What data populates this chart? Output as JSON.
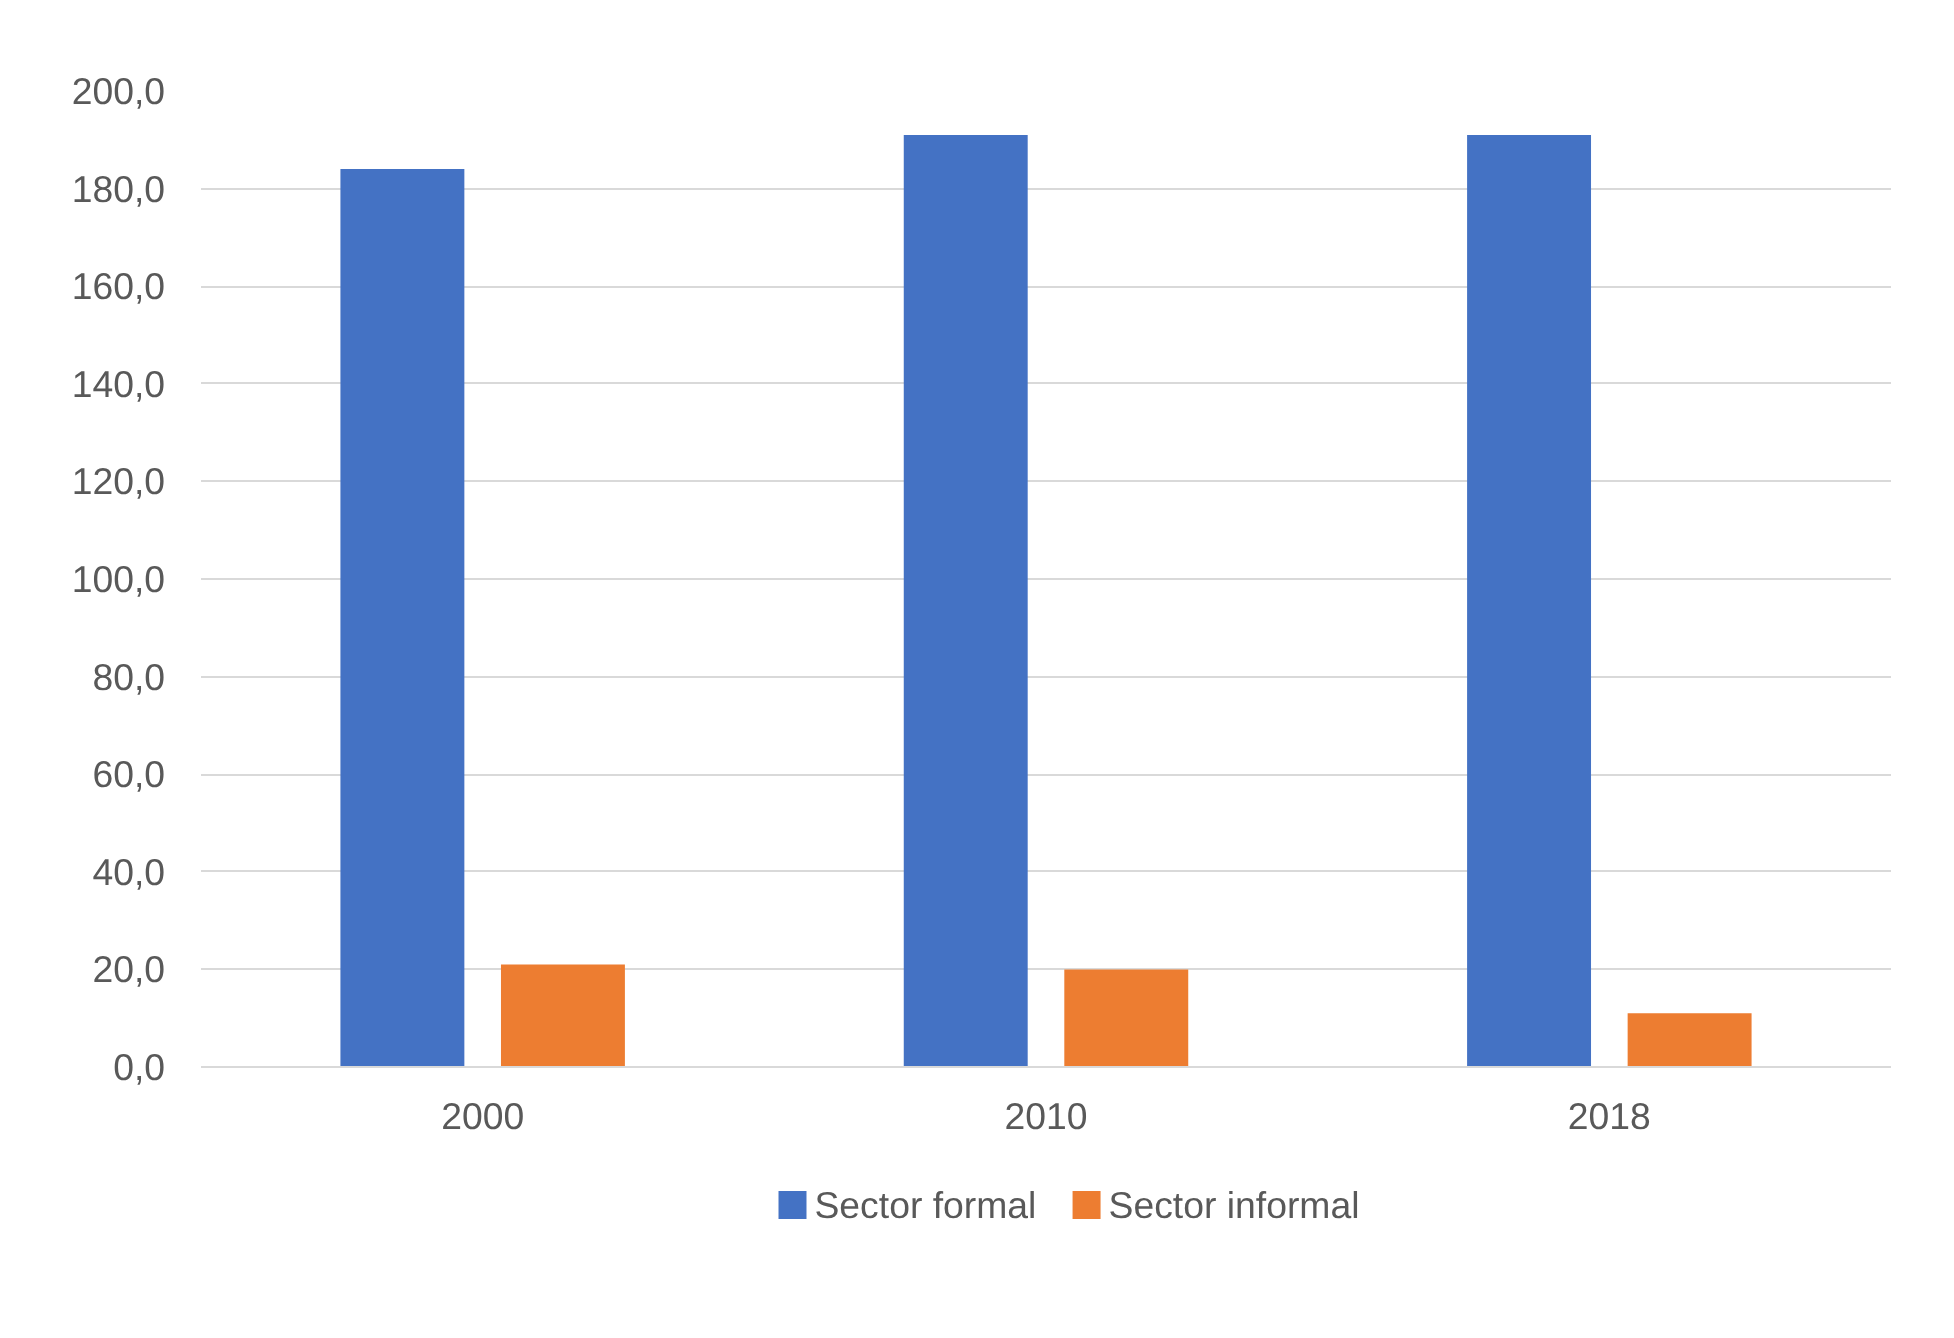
{
  "chart_data": {
    "type": "bar",
    "categories": [
      "2000",
      "2010",
      "2018"
    ],
    "series": [
      {
        "name": "Sector formal",
        "color": "#4472c4",
        "values": [
          184,
          191,
          191
        ]
      },
      {
        "name": "Sector informal",
        "color": "#ed7d31",
        "values": [
          21,
          20,
          11
        ]
      }
    ],
    "ylim": [
      0,
      200
    ],
    "yticks": [
      {
        "value": 0,
        "label": "0,0"
      },
      {
        "value": 20,
        "label": "20,0"
      },
      {
        "value": 40,
        "label": "40,0"
      },
      {
        "value": 60,
        "label": "60,0"
      },
      {
        "value": 80,
        "label": "80,0"
      },
      {
        "value": 100,
        "label": "100,0"
      },
      {
        "value": 120,
        "label": "120,0"
      },
      {
        "value": 140,
        "label": "140,0"
      },
      {
        "value": 160,
        "label": "160,0"
      },
      {
        "value": 180,
        "label": "180,0"
      },
      {
        "value": 200,
        "label": "200,0"
      }
    ],
    "grid": "y",
    "legend": "bottom"
  }
}
